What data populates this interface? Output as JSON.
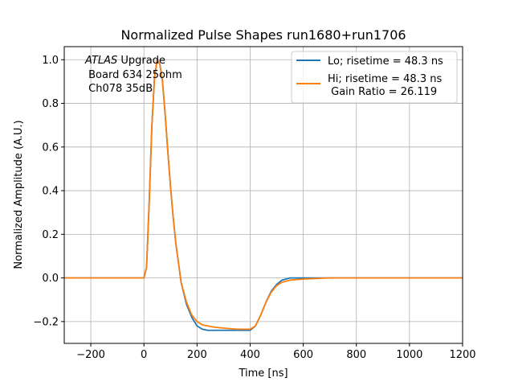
{
  "chart_data": {
    "type": "line",
    "title": "Normalized Pulse Shapes run1680+run1706",
    "xlabel": "Time [ns]",
    "ylabel": "Normalized Amplitude (A.U.)",
    "xlim": [
      -300,
      1200
    ],
    "ylim": [
      -0.3,
      1.06
    ],
    "xticks": [
      -200,
      0,
      200,
      400,
      600,
      800,
      1000,
      1200
    ],
    "xtick_labels": [
      "−200",
      "0",
      "200",
      "400",
      "600",
      "800",
      "1000",
      "1200"
    ],
    "yticks": [
      -0.2,
      0.0,
      0.2,
      0.4,
      0.6,
      0.8,
      1.0
    ],
    "ytick_labels": [
      "−0.2",
      "0.0",
      "0.2",
      "0.4",
      "0.6",
      "0.8",
      "1.0"
    ],
    "grid": true,
    "legend_position": "top-right",
    "annotation": {
      "line1_italic": "ATLAS",
      "line1_rest": " Upgrade",
      "line2": " Board 634 25ohm",
      "line3": " Ch078 35dB"
    },
    "series": [
      {
        "name": "Lo; risetime = 48.3 ns",
        "color": "#1f77b4",
        "x": [
          -300,
          -100,
          0,
          10,
          20,
          30,
          40,
          50,
          60,
          70,
          80,
          90,
          100,
          110,
          120,
          140,
          160,
          180,
          200,
          220,
          240,
          260,
          300,
          350,
          400,
          420,
          440,
          460,
          480,
          500,
          520,
          550,
          600,
          700,
          800,
          1000,
          1200
        ],
        "y": [
          0.0,
          0.0,
          0.0,
          0.05,
          0.35,
          0.7,
          0.92,
          1.0,
          0.98,
          0.9,
          0.75,
          0.58,
          0.42,
          0.28,
          0.16,
          -0.02,
          -0.12,
          -0.18,
          -0.22,
          -0.235,
          -0.24,
          -0.24,
          -0.24,
          -0.24,
          -0.24,
          -0.22,
          -0.17,
          -0.11,
          -0.06,
          -0.03,
          -0.01,
          0.0,
          0.0,
          0.0,
          0.0,
          0.0,
          0.0
        ]
      },
      {
        "name": "Hi; risetime = 48.3 ns\n Gain Ratio = 26.119",
        "color": "#ff7f0e",
        "x": [
          -300,
          -100,
          0,
          10,
          20,
          30,
          40,
          50,
          60,
          70,
          80,
          90,
          100,
          110,
          120,
          140,
          160,
          180,
          200,
          220,
          240,
          260,
          300,
          350,
          400,
          420,
          440,
          460,
          480,
          500,
          520,
          550,
          600,
          700,
          800,
          1000,
          1200
        ],
        "y": [
          0.0,
          0.0,
          0.0,
          0.05,
          0.35,
          0.7,
          0.92,
          1.0,
          0.98,
          0.9,
          0.75,
          0.58,
          0.42,
          0.28,
          0.16,
          -0.02,
          -0.11,
          -0.17,
          -0.2,
          -0.215,
          -0.22,
          -0.225,
          -0.23,
          -0.235,
          -0.235,
          -0.22,
          -0.17,
          -0.11,
          -0.065,
          -0.035,
          -0.02,
          -0.01,
          -0.005,
          0.0,
          0.0,
          0.0,
          0.0
        ]
      }
    ]
  }
}
